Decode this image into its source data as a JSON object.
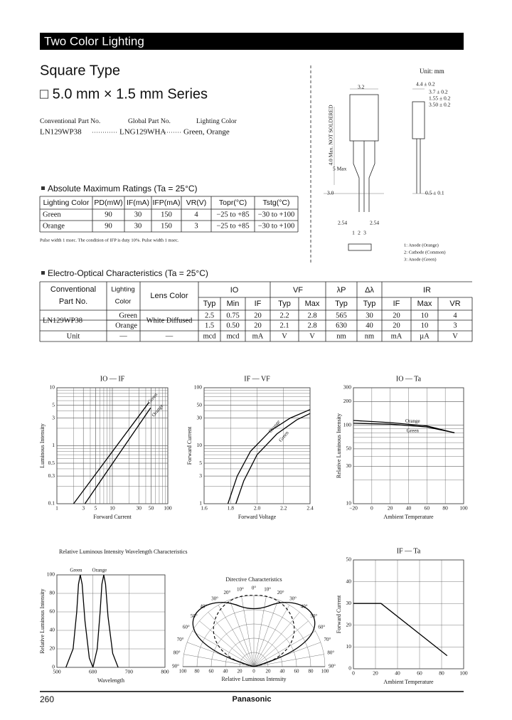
{
  "header": {
    "title": "Two Color Lighting"
  },
  "product": {
    "type": "Square Type",
    "series": "□ 5.0 mm × 1.5 mm Series"
  },
  "part_numbers": {
    "headers": [
      "Conventional Part No.",
      "Global Part No.",
      "Lighting Color"
    ],
    "row": [
      "LN129WP38",
      "LNG129WHA",
      "Green, Orange"
    ]
  },
  "outline": {
    "unit": "Unit: mm",
    "dimensions": [
      "3.2",
      "4.4 ± 0.2",
      "3.7 ± 0.2",
      "1.55 ± 0.2",
      "3.50 ± 0.2",
      "4.0 Max. NOT SOLDERED",
      "5 Max",
      "3.0",
      "0.5 ± 0.1",
      "2.54",
      "2.54"
    ],
    "pins": [
      "1",
      "2",
      "3"
    ],
    "legend": [
      "1: Anode (Orange)",
      "2: Cathode (Common)",
      "3: Anode (Green)"
    ]
  },
  "abs_max": {
    "title": "Absolute Maximum Ratings (Ta = 25°C)",
    "headers": [
      "Lighting Color",
      "PD(mW)",
      "IF(mA)",
      "IFP(mA)",
      "VR(V)",
      "Topr(°C)",
      "Tstg(°C)"
    ],
    "rows": [
      [
        "Green",
        "90",
        "30",
        "150",
        "4",
        "−25 to +85",
        "−30 to +100"
      ],
      [
        "Orange",
        "90",
        "30",
        "150",
        "3",
        "−25 to +85",
        "−30 to +100"
      ]
    ],
    "note": "Pulse width 1 msec. The condition of IFP is duty 10%. Pulse width 1 msec."
  },
  "eo": {
    "title": "Electro-Optical Characteristics (Ta = 25°C)",
    "part_header": [
      "Conventional",
      "Part No."
    ],
    "color_header": [
      "Lighting",
      "Color"
    ],
    "lens_header": "Lens Color",
    "groups": [
      "IO",
      "VF",
      "λP",
      "Δλ",
      "IR"
    ],
    "sub": [
      "Typ",
      "Min",
      "IF",
      "Typ",
      "Max",
      "Typ",
      "Typ",
      "IF",
      "Max",
      "VR"
    ],
    "part": "LN129WP38",
    "lens": "White Diffused",
    "rows": [
      [
        "Green",
        "2.5",
        "0.75",
        "20",
        "2.2",
        "2.8",
        "565",
        "30",
        "20",
        "10",
        "4"
      ],
      [
        "Orange",
        "1.5",
        "0.50",
        "20",
        "2.1",
        "2.8",
        "630",
        "40",
        "20",
        "10",
        "3"
      ]
    ],
    "units": [
      "Unit",
      "—",
      "—",
      "mcd",
      "mcd",
      "mA",
      "V",
      "V",
      "nm",
      "nm",
      "mA",
      "µA",
      "V"
    ]
  },
  "charts": [
    {
      "title": "IO — IF",
      "xlabel": "Forward Current",
      "ylabel": "Luminous Intensity",
      "xlog": true,
      "ylog": true,
      "xticks": [
        "1",
        "3",
        "5",
        "10",
        "30",
        "50",
        "100"
      ],
      "yticks": [
        "0.1",
        "0.3",
        "0.5",
        "1",
        "3",
        "5",
        "10"
      ],
      "curves": [
        {
          "name": "Green",
          "x": [
            2,
            45
          ],
          "y": [
            0.1,
            5.5
          ]
        },
        {
          "name": "Orange",
          "x": [
            3.2,
            49
          ],
          "y": [
            0.1,
            4.5
          ]
        }
      ]
    },
    {
      "title": "IF — VF",
      "xlabel": "Forward Voltage",
      "ylabel": "Forward Current",
      "xlog": false,
      "ylog": true,
      "xticks": [
        "1.6",
        "1.8",
        "2.0",
        "2.2",
        "2.4"
      ],
      "yticks": [
        "1",
        "3",
        "5",
        "10",
        "30",
        "50",
        "100"
      ],
      "curves": [
        {
          "name": "Orange",
          "x": [
            1.78,
            1.85,
            1.95,
            2.1,
            2.25,
            2.4
          ],
          "y": [
            1,
            3,
            8,
            18,
            30,
            42
          ]
        },
        {
          "name": "Green",
          "x": [
            1.84,
            1.9,
            2.0,
            2.15,
            2.3,
            2.4
          ],
          "y": [
            1,
            2.5,
            7,
            16,
            28,
            36
          ]
        }
      ]
    },
    {
      "title": "IO — Ta",
      "xlabel": "Ambient Temperature",
      "ylabel": "Relative Luminous Intensity",
      "xlog": false,
      "ylog": true,
      "xticks": [
        "−20",
        "0",
        "20",
        "40",
        "60",
        "80",
        "100"
      ],
      "yticks": [
        "10",
        "30",
        "50",
        "100",
        "200",
        "300"
      ],
      "curves": [
        {
          "name": "Orange",
          "x": [
            -20,
            20,
            60,
            90
          ],
          "y": [
            115,
            108,
            98,
            80
          ]
        },
        {
          "name": "Green",
          "x": [
            -20,
            20,
            60,
            90
          ],
          "y": [
            106,
            103,
            95,
            80
          ]
        }
      ]
    },
    {
      "title": "Relative Luminous Intensity Wavelength Characteristics",
      "xlabel": "Wavelength",
      "ylabel": "Relative Luminous Intensity",
      "xlog": false,
      "ylog": false,
      "xticks": [
        "500",
        "600",
        "700",
        "800"
      ],
      "yticks": [
        "0",
        "20",
        "40",
        "60",
        "80",
        "100"
      ],
      "curves": [
        {
          "name": "Green",
          "x": [
            525,
            545,
            555,
            560,
            565,
            570,
            578,
            590,
            600
          ],
          "y": [
            0,
            20,
            60,
            90,
            100,
            90,
            50,
            10,
            0
          ]
        },
        {
          "name": "Orange",
          "x": [
            600,
            612,
            620,
            625,
            630,
            635,
            642,
            655,
            670
          ],
          "y": [
            0,
            20,
            60,
            90,
            100,
            90,
            55,
            15,
            0
          ]
        }
      ]
    },
    {
      "title": "IF — Ta",
      "xlabel": "Ambient Temperature",
      "ylabel": "Forward Current",
      "xlog": false,
      "ylog": false,
      "xticks": [
        "0",
        "20",
        "40",
        "60",
        "80",
        "100"
      ],
      "yticks": [
        "0",
        "10",
        "20",
        "30",
        "40",
        "50"
      ],
      "curves": [
        {
          "x": [
            0,
            25,
            85
          ],
          "y": [
            30,
            30,
            6
          ]
        }
      ]
    }
  ],
  "directive": {
    "title": "Directive Characteristics",
    "angles": [
      "0°",
      "10°",
      "20°",
      "30°",
      "40°",
      "50°",
      "60°",
      "70°",
      "80°",
      "90°"
    ],
    "scale": [
      "100",
      "80",
      "60",
      "40",
      "20",
      "0",
      "20",
      "40",
      "60",
      "80",
      "100"
    ],
    "xlabel": "Relative Luminous Intensity"
  },
  "footer": {
    "page": "260",
    "brand": "Panasonic"
  }
}
